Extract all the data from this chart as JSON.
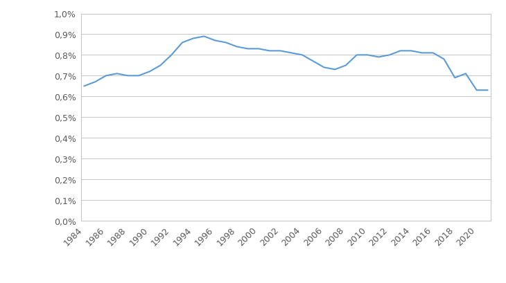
{
  "years": [
    1984,
    1985,
    1986,
    1987,
    1988,
    1989,
    1990,
    1991,
    1992,
    1993,
    1994,
    1995,
    1996,
    1997,
    1998,
    1999,
    2000,
    2001,
    2002,
    2003,
    2004,
    2005,
    2006,
    2007,
    2008,
    2009,
    2010,
    2011,
    2012,
    2013,
    2014,
    2015,
    2016,
    2017,
    2018,
    2019,
    2020,
    2021
  ],
  "values": [
    0.0065,
    0.0067,
    0.007,
    0.0071,
    0.007,
    0.007,
    0.0072,
    0.0075,
    0.008,
    0.0086,
    0.0088,
    0.0089,
    0.0087,
    0.0086,
    0.0084,
    0.0083,
    0.0083,
    0.0082,
    0.0082,
    0.0081,
    0.008,
    0.0077,
    0.0074,
    0.0073,
    0.0075,
    0.008,
    0.008,
    0.0079,
    0.008,
    0.0082,
    0.0082,
    0.0081,
    0.0081,
    0.0078,
    0.0069,
    0.0071,
    0.0063,
    0.0063
  ],
  "line_color": "#5B9BD5",
  "line_width": 1.5,
  "background_color": "#ffffff",
  "plot_area_color": "#ffffff",
  "grid_color": "#c8c8c8",
  "tick_label_color": "#595959",
  "spine_color": "#c8c8c8",
  "ylim": [
    0.0,
    0.01
  ],
  "ytick_values": [
    0.0,
    0.001,
    0.002,
    0.003,
    0.004,
    0.005,
    0.006,
    0.007,
    0.008,
    0.009,
    0.01
  ],
  "ytick_labels": [
    "0,0%",
    "0,1%",
    "0,2%",
    "0,3%",
    "0,4%",
    "0,5%",
    "0,6%",
    "0,7%",
    "0,8%",
    "0,9%",
    "1,0%"
  ],
  "fig_width": 7.3,
  "fig_height": 4.1,
  "dpi": 100
}
